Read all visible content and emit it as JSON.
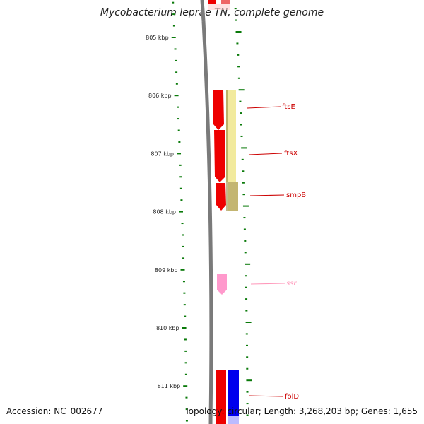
{
  "title": "Mycobacterium leprae TN, complete genome",
  "accession": "Accession: NC_002677",
  "topology": "Topology: circular; Length: 3,268,203 bp; Genes: 1,655",
  "colors": {
    "tick": "#0a7a0a",
    "backbone": "#7a7a7a",
    "gene_red": "#ee0000",
    "gene_yellow": "#f0e68c",
    "gene_olive": "#9a8a40",
    "gene_pink": "#ff99cc",
    "gene_blue": "#0000ee",
    "label_red": "#cc0000",
    "label_pink": "#ff99bb"
  },
  "scale_labels": [
    "805 kbp",
    "806 kbp",
    "807 kbp",
    "808 kbp",
    "809 kbp",
    "810 kbp",
    "811 kbp"
  ],
  "genes": [
    {
      "name": "ftsE",
      "color": "label_red"
    },
    {
      "name": "ftsX",
      "color": "label_red"
    },
    {
      "name": "smpB",
      "color": "label_red"
    },
    {
      "name": "ssr",
      "color": "label_pink"
    },
    {
      "name": "folD",
      "color": "label_red"
    }
  ]
}
